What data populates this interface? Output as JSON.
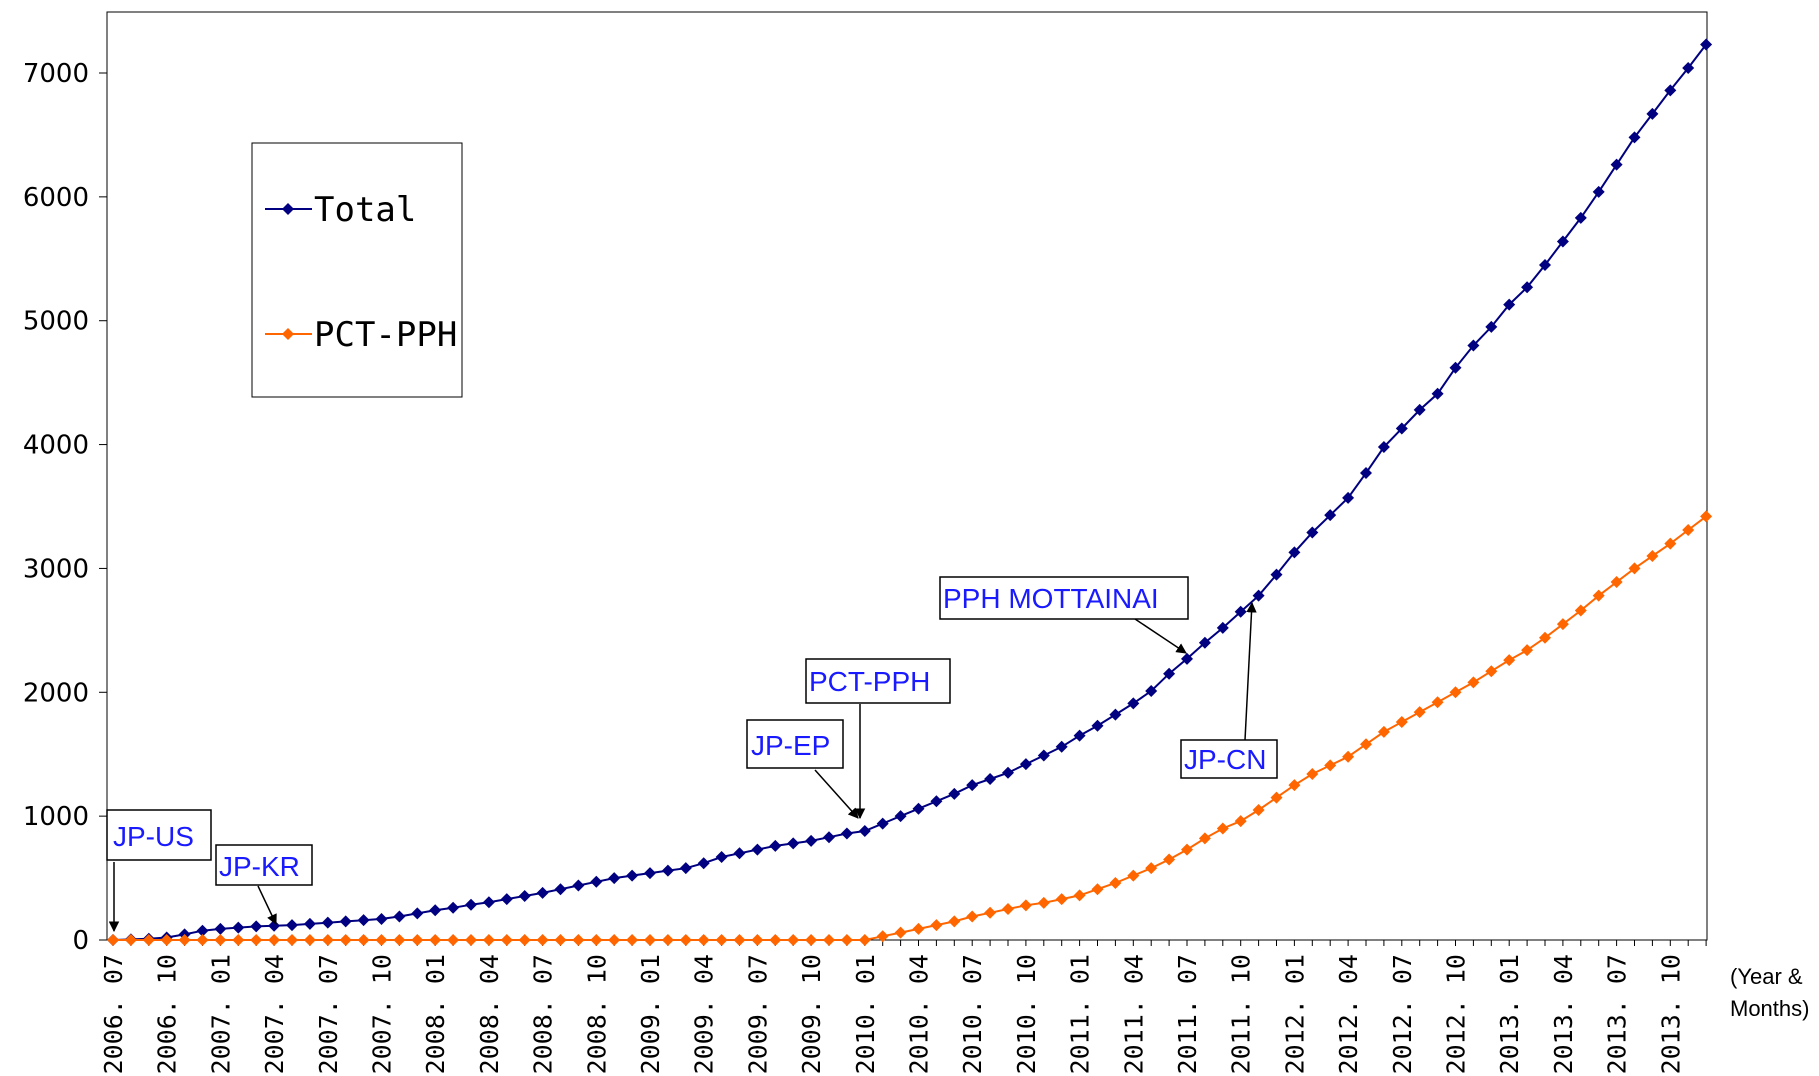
{
  "chart_data": {
    "type": "line",
    "title": "",
    "xlabel": "(Year & Months)",
    "ylabel": "",
    "ylim": [
      0,
      7500
    ],
    "yticks": [
      0,
      1000,
      2000,
      3000,
      4000,
      5000,
      6000,
      7000
    ],
    "grid": false,
    "legend_position": "top-left",
    "x": [
      "2006.07",
      "2006.08",
      "2006.09",
      "2006.10",
      "2006.11",
      "2006.12",
      "2007.01",
      "2007.02",
      "2007.03",
      "2007.04",
      "2007.05",
      "2007.06",
      "2007.07",
      "2007.08",
      "2007.09",
      "2007.10",
      "2007.11",
      "2007.12",
      "2008.01",
      "2008.02",
      "2008.03",
      "2008.04",
      "2008.05",
      "2008.06",
      "2008.07",
      "2008.08",
      "2008.09",
      "2008.10",
      "2008.11",
      "2008.12",
      "2009.01",
      "2009.02",
      "2009.03",
      "2009.04",
      "2009.05",
      "2009.06",
      "2009.07",
      "2009.08",
      "2009.09",
      "2009.10",
      "2009.11",
      "2009.12",
      "2010.01",
      "2010.02",
      "2010.03",
      "2010.04",
      "2010.05",
      "2010.06",
      "2010.07",
      "2010.08",
      "2010.09",
      "2010.10",
      "2010.11",
      "2010.12",
      "2011.01",
      "2011.02",
      "2011.03",
      "2011.04",
      "2011.05",
      "2011.06",
      "2011.07",
      "2011.08",
      "2011.09",
      "2011.10",
      "2011.11",
      "2011.12",
      "2012.01",
      "2012.02",
      "2012.03",
      "2012.04",
      "2012.05",
      "2012.06",
      "2012.07",
      "2012.08",
      "2012.09",
      "2012.10",
      "2012.11",
      "2012.12",
      "2013.01",
      "2013.02",
      "2013.03",
      "2013.04",
      "2013.05",
      "2013.06",
      "2013.07",
      "2013.08",
      "2013.09",
      "2013.10",
      "2013.11",
      "2013.12"
    ],
    "x_tick_labels": [
      "2006. 07",
      "2006. 10",
      "2007. 01",
      "2007. 04",
      "2007. 07",
      "2007. 10",
      "2008. 01",
      "2008. 04",
      "2008. 07",
      "2008. 10",
      "2009. 01",
      "2009. 04",
      "2009. 07",
      "2009. 10",
      "2010. 01",
      "2010. 04",
      "2010. 07",
      "2010. 10",
      "2011. 01",
      "2011. 04",
      "2011. 07",
      "2011. 10",
      "2012. 01",
      "2012. 04",
      "2012. 07",
      "2012. 10",
      "2013. 01",
      "2013. 04",
      "2013. 07",
      "2013. 10"
    ],
    "series": [
      {
        "name": "Total",
        "color": "#000080",
        "marker": "diamond",
        "values": [
          0,
          5,
          10,
          20,
          45,
          75,
          90,
          100,
          110,
          115,
          120,
          130,
          140,
          150,
          160,
          170,
          190,
          215,
          240,
          260,
          285,
          305,
          330,
          355,
          380,
          410,
          440,
          470,
          500,
          520,
          540,
          560,
          580,
          620,
          670,
          700,
          730,
          760,
          780,
          800,
          830,
          860,
          880,
          940,
          1000,
          1060,
          1120,
          1180,
          1250,
          1300,
          1350,
          1420,
          1490,
          1560,
          1650,
          1730,
          1820,
          1910,
          2010,
          2150,
          2270,
          2400,
          2520,
          2650,
          2780,
          2950,
          3130,
          3290,
          3430,
          3570,
          3770,
          3980,
          4130,
          4280,
          4410,
          4620,
          4800,
          4950,
          5130,
          5270,
          5450,
          5640,
          5830,
          6040,
          6260,
          6480,
          6670,
          6860,
          7040,
          7230
        ]
      },
      {
        "name": "PCT-PPH",
        "color": "#ff6600",
        "marker": "diamond",
        "values": [
          0,
          0,
          0,
          0,
          0,
          0,
          0,
          0,
          0,
          0,
          0,
          0,
          0,
          0,
          0,
          0,
          0,
          0,
          0,
          0,
          0,
          0,
          0,
          0,
          0,
          0,
          0,
          0,
          0,
          0,
          0,
          0,
          0,
          0,
          0,
          0,
          0,
          0,
          0,
          0,
          0,
          0,
          0,
          30,
          60,
          90,
          120,
          150,
          190,
          220,
          250,
          280,
          300,
          330,
          360,
          410,
          460,
          520,
          580,
          650,
          730,
          820,
          900,
          960,
          1050,
          1150,
          1250,
          1340,
          1410,
          1480,
          1580,
          1680,
          1760,
          1840,
          1920,
          2000,
          2080,
          2170,
          2260,
          2340,
          2440,
          2550,
          2660,
          2780,
          2890,
          3000,
          3100,
          3200,
          3310,
          3420
        ]
      }
    ],
    "annotations": [
      {
        "text": "JP-US",
        "target_x": "2006.07",
        "target_series": "Total"
      },
      {
        "text": "JP-KR",
        "target_x": "2007.04",
        "target_series": "Total"
      },
      {
        "text": "JP-EP",
        "target_x": "2010.01",
        "target_series": "Total"
      },
      {
        "text": "PCT-PPH",
        "target_x": "2010.01",
        "target_series": "Total"
      },
      {
        "text": "PPH MOTTAINAI",
        "target_x": "2011.07",
        "target_series": "Total"
      },
      {
        "text": "JP-CN",
        "target_x": "2011.10",
        "target_series": "Total"
      }
    ]
  }
}
